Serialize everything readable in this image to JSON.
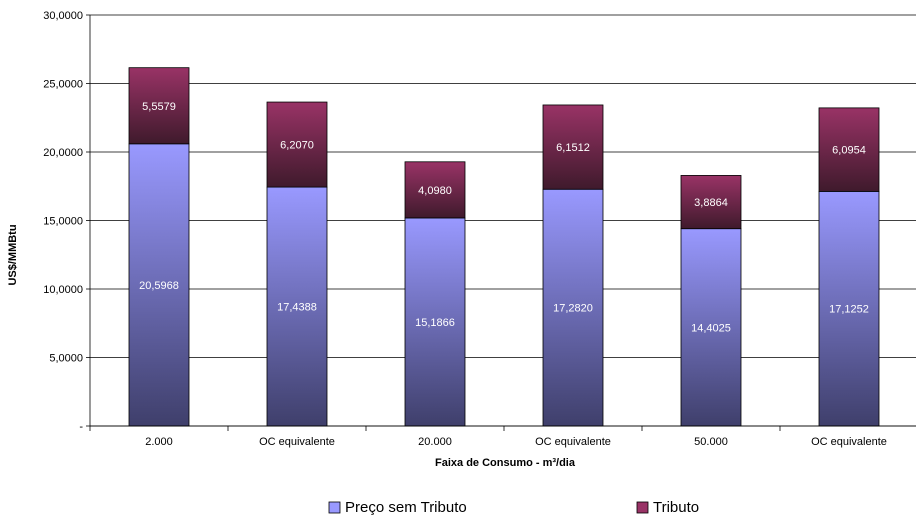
{
  "chart_data": {
    "type": "bar",
    "stacked": true,
    "ylabel": "US$/MMBtu",
    "xlabel": "Faixa de Consumo - m³/dia",
    "ylim": [
      0,
      30
    ],
    "yticks": [
      0,
      5,
      10,
      15,
      20,
      25,
      30
    ],
    "ytick_labels": [
      "-",
      "5,0000",
      "10,0000",
      "15,0000",
      "20,0000",
      "25,0000",
      "30,0000"
    ],
    "categories": [
      "2.000",
      "OC equivalente",
      "20.000",
      "OC equivalente",
      "50.000",
      "OC equivalente"
    ],
    "series": [
      {
        "name": "Preço sem Tributo",
        "values": [
          20.5968,
          17.4388,
          15.1866,
          17.282,
          14.4025,
          17.1252
        ],
        "labels": [
          "20,5968",
          "17,4388",
          "15,1866",
          "17,2820",
          "14,4025",
          "17,1252"
        ],
        "color_top": "#9999ff",
        "color_bottom": "#3f3f6b"
      },
      {
        "name": "Tributo",
        "values": [
          5.5579,
          6.207,
          4.098,
          6.1512,
          3.8864,
          6.0954
        ],
        "labels": [
          "5,5579",
          "6,2070",
          "4,0980",
          "6,1512",
          "3,8864",
          "6,0954"
        ],
        "color_top": "#993366",
        "color_bottom": "#3f1a2c"
      }
    ],
    "grid": true,
    "legend": "bottom"
  }
}
